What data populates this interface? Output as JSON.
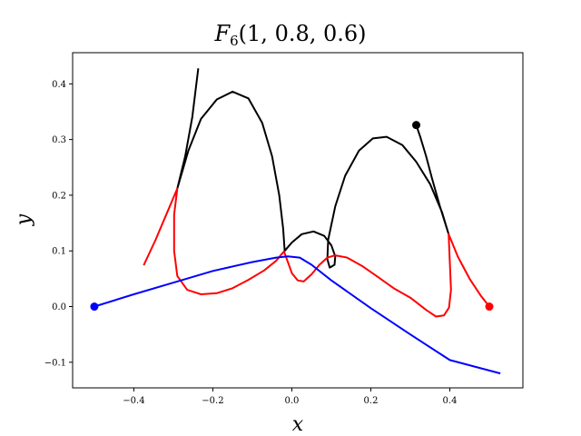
{
  "chart_data": {
    "type": "line",
    "title_main": "F",
    "title_sub": "6",
    "title_args": "(1, 0.8, 0.6)",
    "xlabel": "x",
    "ylabel": "y",
    "xlim": [
      -0.555,
      0.585
    ],
    "ylim": [
      -0.146,
      0.456
    ],
    "xticks": [
      -0.4,
      -0.2,
      0.0,
      0.2,
      0.4
    ],
    "xtick_labels": [
      "−0.4",
      "−0.2",
      "0.0",
      "0.2",
      "0.4"
    ],
    "yticks": [
      -0.1,
      0.0,
      0.1,
      0.2,
      0.3,
      0.4
    ],
    "ytick_labels": [
      "−0.1",
      "0.0",
      "0.1",
      "0.2",
      "0.3",
      "0.4"
    ],
    "grid": false,
    "colors": {
      "black": "#000000",
      "red": "#ff0000",
      "blue": "#0000ff"
    },
    "series": [
      {
        "color": "black",
        "points": [
          [
            -0.237,
            0.428
          ],
          [
            -0.252,
            0.34
          ],
          [
            -0.27,
            0.27
          ],
          [
            -0.29,
            0.212
          ],
          [
            -0.262,
            0.28
          ],
          [
            -0.23,
            0.337
          ],
          [
            -0.19,
            0.372
          ],
          [
            -0.15,
            0.386
          ],
          [
            -0.11,
            0.374
          ],
          [
            -0.075,
            0.33
          ],
          [
            -0.05,
            0.27
          ],
          [
            -0.032,
            0.2
          ],
          [
            -0.022,
            0.14
          ],
          [
            -0.018,
            0.1
          ],
          [
            0.0,
            0.115
          ],
          [
            0.025,
            0.13
          ],
          [
            0.055,
            0.135
          ],
          [
            0.082,
            0.127
          ],
          [
            0.1,
            0.11
          ],
          [
            0.11,
            0.09
          ],
          [
            0.108,
            0.075
          ],
          [
            0.096,
            0.07
          ],
          [
            0.09,
            0.085
          ],
          [
            0.092,
            0.12
          ],
          [
            0.11,
            0.18
          ],
          [
            0.135,
            0.235
          ],
          [
            0.17,
            0.28
          ],
          [
            0.205,
            0.302
          ],
          [
            0.24,
            0.305
          ],
          [
            0.28,
            0.29
          ],
          [
            0.315,
            0.26
          ],
          [
            0.35,
            0.22
          ],
          [
            0.38,
            0.17
          ],
          [
            0.397,
            0.13
          ],
          [
            0.375,
            0.18
          ],
          [
            0.355,
            0.23
          ],
          [
            0.34,
            0.27
          ],
          [
            0.325,
            0.305
          ],
          [
            0.315,
            0.326
          ]
        ]
      },
      {
        "color": "red",
        "points": [
          [
            -0.375,
            0.074
          ],
          [
            -0.345,
            0.12
          ],
          [
            -0.315,
            0.17
          ],
          [
            -0.29,
            0.212
          ],
          [
            -0.298,
            0.165
          ],
          [
            -0.298,
            0.1
          ],
          [
            -0.29,
            0.055
          ],
          [
            -0.265,
            0.03
          ],
          [
            -0.23,
            0.022
          ],
          [
            -0.19,
            0.024
          ],
          [
            -0.15,
            0.033
          ],
          [
            -0.11,
            0.048
          ],
          [
            -0.07,
            0.065
          ],
          [
            -0.04,
            0.082
          ],
          [
            -0.02,
            0.099
          ],
          [
            -0.01,
            0.08
          ],
          [
            0.0,
            0.06
          ],
          [
            0.015,
            0.047
          ],
          [
            0.03,
            0.045
          ],
          [
            0.05,
            0.058
          ],
          [
            0.07,
            0.075
          ],
          [
            0.09,
            0.088
          ],
          [
            0.11,
            0.092
          ],
          [
            0.14,
            0.088
          ],
          [
            0.18,
            0.072
          ],
          [
            0.22,
            0.052
          ],
          [
            0.26,
            0.032
          ],
          [
            0.3,
            0.016
          ],
          [
            0.34,
            -0.006
          ],
          [
            0.365,
            -0.018
          ],
          [
            0.385,
            -0.016
          ],
          [
            0.398,
            -0.002
          ],
          [
            0.403,
            0.03
          ],
          [
            0.4,
            0.08
          ],
          [
            0.397,
            0.13
          ],
          [
            0.42,
            0.09
          ],
          [
            0.45,
            0.05
          ],
          [
            0.478,
            0.02
          ],
          [
            0.5,
            0.0
          ]
        ]
      },
      {
        "color": "blue",
        "points": [
          [
            -0.5,
            0.0
          ],
          [
            -0.4,
            0.022
          ],
          [
            -0.3,
            0.043
          ],
          [
            -0.2,
            0.064
          ],
          [
            -0.1,
            0.08
          ],
          [
            -0.04,
            0.088
          ],
          [
            -0.01,
            0.09
          ],
          [
            0.02,
            0.088
          ],
          [
            0.05,
            0.075
          ],
          [
            0.1,
            0.047
          ],
          [
            0.2,
            -0.003
          ],
          [
            0.3,
            -0.05
          ],
          [
            0.4,
            -0.096
          ],
          [
            0.528,
            -0.12
          ]
        ]
      }
    ],
    "markers": [
      {
        "x": -0.5,
        "y": 0.0,
        "color": "blue"
      },
      {
        "x": 0.5,
        "y": 0.0,
        "color": "red"
      },
      {
        "x": 0.315,
        "y": 0.326,
        "color": "black"
      }
    ]
  }
}
